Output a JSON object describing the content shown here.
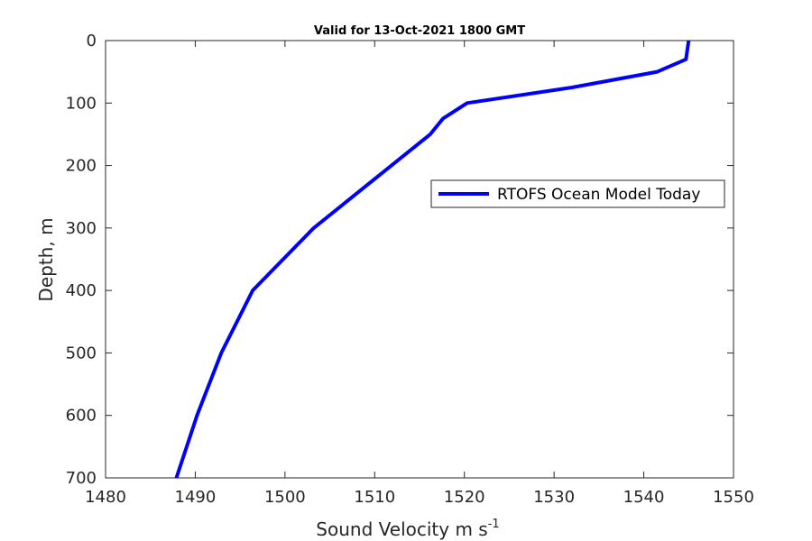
{
  "chart_data": {
    "type": "line",
    "title": "Valid for 13-Oct-2021 1800 GMT",
    "xlabel": "Sound Velocity m s",
    "xlabel_superscript": "-1",
    "ylabel": "Depth, m",
    "xlim": [
      1480,
      1550
    ],
    "ylim": [
      0,
      700
    ],
    "y_reversed": true,
    "xticks": [
      "1480",
      "1490",
      "1500",
      "1510",
      "1520",
      "1530",
      "1540",
      "1550"
    ],
    "yticks": [
      "0",
      "100",
      "200",
      "300",
      "400",
      "500",
      "600",
      "700"
    ],
    "grid": false,
    "legend_position": "upper-right",
    "series": [
      {
        "name": "RTOFS Ocean Model Today",
        "color": "#0000ff",
        "x": [
          1545.0,
          1544.7,
          1541.5,
          1532.0,
          1520.3,
          1517.6,
          1516.2,
          1503.2,
          1496.4,
          1492.9,
          1490.2,
          1487.9
        ],
        "y": [
          0,
          30,
          50,
          75,
          100,
          125,
          150,
          300,
          400,
          500,
          600,
          700
        ]
      }
    ]
  }
}
